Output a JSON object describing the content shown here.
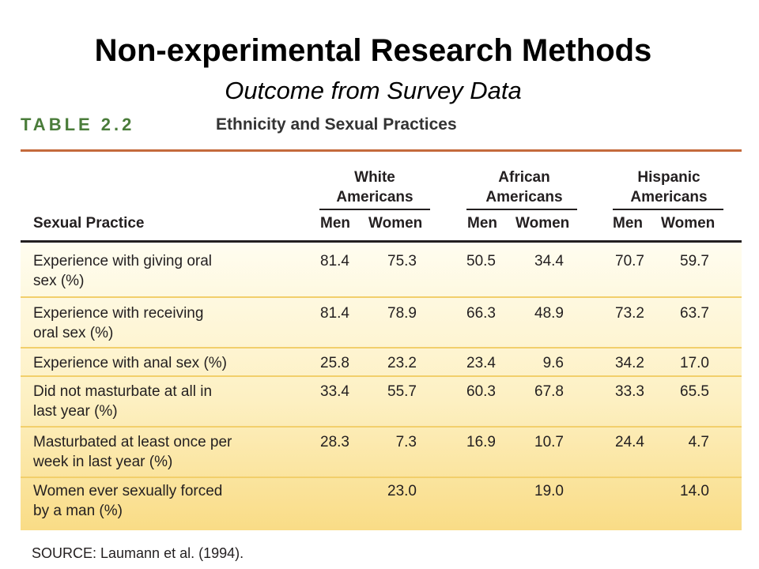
{
  "slide": {
    "title": "Non-experimental Research Methods",
    "subtitle": "Outcome from Survey Data"
  },
  "table": {
    "number": "TABLE 2.2",
    "title": "Ethnicity and Sexual Practices",
    "practice_header": "Sexual Practice",
    "groups": [
      {
        "line1": "White",
        "line2": "Americans",
        "men": "Men",
        "women": "Women"
      },
      {
        "line1": "African",
        "line2": "Americans",
        "men": "Men",
        "women": "Women"
      },
      {
        "line1": "Hispanic",
        "line2": "Americans",
        "men": "Men",
        "women": "Women"
      }
    ],
    "rows": [
      {
        "label1": "Experience with giving oral",
        "label2": "sex (%)",
        "values": [
          "81.4",
          "75.3",
          "50.5",
          "34.4",
          "70.7",
          "59.7"
        ]
      },
      {
        "label1": "Experience with receiving",
        "label2": "oral sex (%)",
        "values": [
          "81.4",
          "78.9",
          "66.3",
          "48.9",
          "73.2",
          "63.7"
        ]
      },
      {
        "label1": "Experience with anal sex (%)",
        "label2": "",
        "values": [
          "25.8",
          "23.2",
          "23.4",
          "9.6",
          "34.2",
          "17.0"
        ]
      },
      {
        "label1": "Did not masturbate at all in",
        "label2": "last year (%)",
        "values": [
          "33.4",
          "55.7",
          "60.3",
          "67.8",
          "33.3",
          "65.5"
        ]
      },
      {
        "label1": "Masturbated at least once per",
        "label2": "week in last year (%)",
        "values": [
          "28.3",
          "7.3",
          "16.9",
          "10.7",
          "24.4",
          "4.7"
        ]
      },
      {
        "label1": "Women ever sexually forced",
        "label2": "by a man (%)",
        "values": [
          "",
          "23.0",
          "",
          "19.0",
          "",
          "14.0"
        ]
      }
    ],
    "source": "SOURCE: Laumann et al. (1994)."
  },
  "colors": {
    "accent_green": "#4a7c3a",
    "rule_orange": "#c46a3c",
    "row_divider": "#f2cf6b"
  }
}
